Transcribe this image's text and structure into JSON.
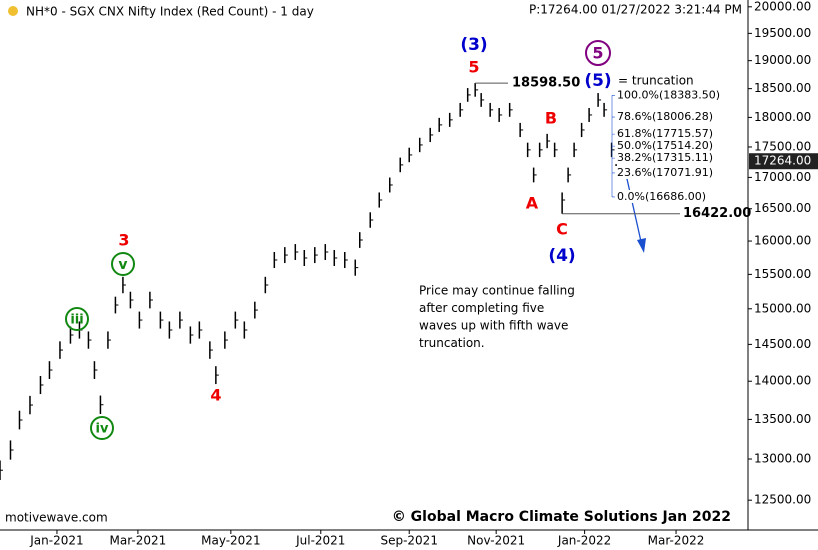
{
  "chart_data": {
    "type": "ohlc",
    "title": "NH*0 - SGX CNX Nifty Index (Red Count) - 1 day",
    "subtitle": "P:17264.00  01/27/2022 3:21:44 PM",
    "source": "motivewave.com",
    "copyright": "© Global Macro Climate Solutions Jan 2022",
    "color": "#000000",
    "log_scale": true,
    "xlim": [
      0,
      499
    ],
    "ylim": [
      12150,
      20130
    ],
    "xticks": [
      {
        "value": 38,
        "label": "Jan-2021"
      },
      {
        "value": 92,
        "label": "Mar-2021"
      },
      {
        "value": 154,
        "label": "May-2021"
      },
      {
        "value": 214,
        "label": "Jul-2021"
      },
      {
        "value": 273,
        "label": "Sep-2021"
      },
      {
        "value": 331,
        "label": "Nov-2021"
      },
      {
        "value": 390,
        "label": "Jan-2022"
      },
      {
        "value": 451,
        "label": "Mar-2022"
      }
    ],
    "yticks": [
      {
        "value": 12500,
        "label": "12500.00"
      },
      {
        "value": 13000,
        "label": "13000.00"
      },
      {
        "value": 13500,
        "label": "13500.00"
      },
      {
        "value": 14000,
        "label": "14000.00"
      },
      {
        "value": 14500,
        "label": "14500.00"
      },
      {
        "value": 15000,
        "label": "15000.00"
      },
      {
        "value": 15500,
        "label": "15500.00"
      },
      {
        "value": 16000,
        "label": "16000.00"
      },
      {
        "value": 16500,
        "label": "16500.00"
      },
      {
        "value": 17000,
        "label": "17000.00"
      },
      {
        "value": 17500,
        "label": "17500.00"
      },
      {
        "value": 18000,
        "label": "18000.00"
      },
      {
        "value": 18500,
        "label": "18500.00"
      },
      {
        "value": 19000,
        "label": "19000.00"
      },
      {
        "value": 19500,
        "label": "19500.00"
      },
      {
        "value": 20000,
        "label": "20000.00"
      }
    ],
    "x": [
      0,
      7,
      13,
      20,
      27,
      33,
      40,
      47,
      53,
      59,
      63,
      67,
      72,
      77,
      82,
      87,
      93,
      100,
      107,
      113,
      120,
      127,
      133,
      140,
      144,
      150,
      157,
      163,
      170,
      177,
      183,
      190,
      197,
      203,
      210,
      217,
      223,
      230,
      237,
      240,
      247,
      253,
      260,
      267,
      273,
      280,
      287,
      293,
      300,
      307,
      312,
      317,
      321,
      327,
      333,
      340,
      347,
      352,
      356,
      360,
      365,
      370,
      375,
      379,
      383,
      388,
      393,
      399,
      403,
      408,
      411
    ],
    "high": [
      12982,
      13232,
      13612,
      13806,
      14070,
      14270,
      14542,
      14750,
      14820,
      14680,
      14270,
      13810,
      14680,
      15174,
      15464,
      15246,
      14960,
      15246,
      14960,
      14820,
      14960,
      14750,
      14820,
      14542,
      14202,
      14680,
      14960,
      14820,
      15102,
      15464,
      15834,
      15908,
      15954,
      15864,
      15908,
      15954,
      15864,
      15834,
      15720,
      16136,
      16444,
      16758,
      16998,
      17324,
      17488,
      17654,
      17822,
      17992,
      18078,
      18250,
      18510,
      18598.5,
      18422,
      18250,
      18162,
      18250,
      17906,
      17572,
      17160,
      17572,
      17720,
      17572,
      16758,
      17160,
      17572,
      17906,
      18162,
      18422,
      18250,
      17572,
      17384
    ],
    "low": [
      12742,
      12992,
      13372,
      13566,
      13830,
      14030,
      14302,
      14510,
      14580,
      14440,
      14030,
      13570,
      14440,
      14934,
      15224,
      15006,
      14720,
      15006,
      14720,
      14580,
      14720,
      14510,
      14580,
      14302,
      13962,
      14440,
      14720,
      14580,
      14862,
      15224,
      15594,
      15668,
      15714,
      15624,
      15668,
      15714,
      15624,
      15594,
      15480,
      15896,
      16204,
      16518,
      16758,
      17084,
      17248,
      17414,
      17582,
      17752,
      17838,
      18010,
      18270,
      18358,
      18182,
      18010,
      17922,
      18010,
      17666,
      17332,
      16920,
      17332,
      17480,
      17332,
      16422,
      16920,
      17332,
      17666,
      17922,
      18182,
      18010,
      17332,
      17144
    ],
    "close": [
      12862,
      13112,
      13492,
      13686,
      13950,
      14150,
      14422,
      14630,
      14700,
      14560,
      14150,
      13690,
      14560,
      15054,
      15344,
      15126,
      14840,
      15126,
      14840,
      14700,
      14840,
      14630,
      14700,
      14422,
      14082,
      14560,
      14840,
      14700,
      14982,
      15344,
      15714,
      15788,
      15834,
      15744,
      15788,
      15834,
      15744,
      15714,
      15600,
      16016,
      16324,
      16638,
      16878,
      17204,
      17368,
      17534,
      17702,
      17872,
      17958,
      18130,
      18390,
      18478,
      18302,
      18130,
      18042,
      18130,
      17786,
      17452,
      17040,
      17452,
      17600,
      17452,
      16638,
      17040,
      17452,
      17786,
      18042,
      18302,
      18130,
      17452,
      17264
    ],
    "last_price": {
      "value": 17264,
      "label": "17264.00"
    },
    "price_levels": [
      {
        "value": 18598.5,
        "label": "18598.50"
      },
      {
        "value": 16422,
        "label": "16422.00"
      }
    ],
    "fib_levels": [
      {
        "value": 18383.5,
        "label": "100.0%(18383.50)"
      },
      {
        "value": 18006.28,
        "label": "78.6%(18006.28)"
      },
      {
        "value": 17715.57,
        "label": "61.8%(17715.57)"
      },
      {
        "value": 17514.2,
        "label": "50.0%(17514.20)"
      },
      {
        "value": 17315.11,
        "label": "38.2%(17315.11)"
      },
      {
        "value": 17071.91,
        "label": "23.6%(17071.91)"
      },
      {
        "value": 16686,
        "label": "0.0%(16686.00)"
      }
    ],
    "annotations": [
      {
        "text": "(3)",
        "color": "#0000cc"
      },
      {
        "text": "5",
        "color": "#ee0000"
      },
      {
        "text": "5",
        "color": "#800080"
      },
      {
        "text": "(5)",
        "color": "#0000cc"
      },
      {
        "text": "= truncation",
        "color": "#000000"
      },
      {
        "text": "B",
        "color": "#ee0000"
      },
      {
        "text": "A",
        "color": "#ee0000"
      },
      {
        "text": "C",
        "color": "#ee0000"
      },
      {
        "text": "(4)",
        "color": "#0000cc"
      },
      {
        "text": "3",
        "color": "#ee0000"
      },
      {
        "text": "v",
        "color": "#118811"
      },
      {
        "text": "iii",
        "color": "#118811"
      },
      {
        "text": "iv",
        "color": "#118811"
      },
      {
        "text": "4",
        "color": "#ee0000"
      }
    ],
    "note": [
      "Price may continue falling",
      "after completing five",
      "waves up with fifth wave",
      "truncation."
    ]
  }
}
